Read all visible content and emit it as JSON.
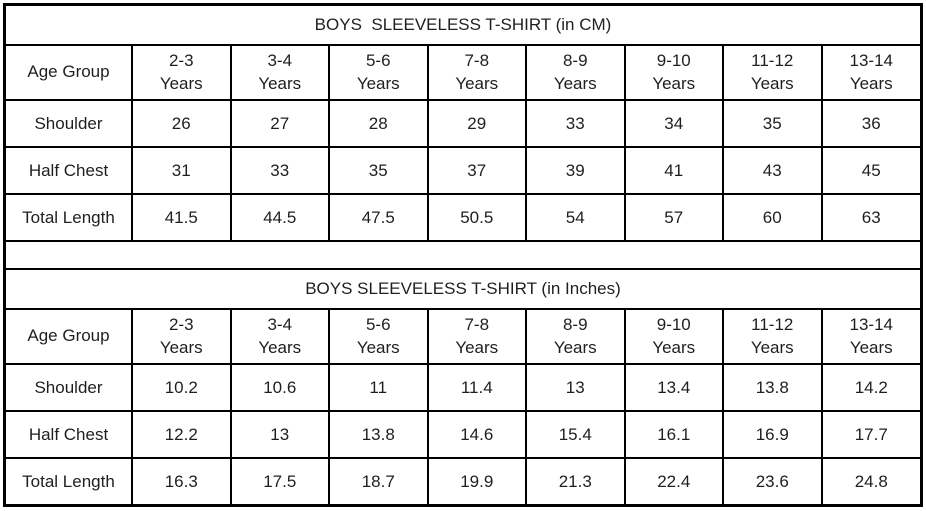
{
  "colors": {
    "border": "#000000",
    "text": "#1f1f1f",
    "background": "#ffffff"
  },
  "size_chart": {
    "years_label": "Years",
    "tables": [
      {
        "title": "BOYS  SLEEVELESS T-SHIRT (in CM)",
        "corner_label": "Age Group",
        "age_groups": [
          "2-3",
          "3-4",
          "5-6",
          "7-8",
          "8-9",
          "9-10",
          "11-12",
          "13-14"
        ],
        "rows": [
          {
            "label": "Shoulder",
            "values": [
              "26",
              "27",
              "28",
              "29",
              "33",
              "34",
              "35",
              "36"
            ]
          },
          {
            "label": "Half Chest",
            "values": [
              "31",
              "33",
              "35",
              "37",
              "39",
              "41",
              "43",
              "45"
            ]
          },
          {
            "label": "Total Length",
            "values": [
              "41.5",
              "44.5",
              "47.5",
              "50.5",
              "54",
              "57",
              "60",
              "63"
            ]
          }
        ]
      },
      {
        "title": "BOYS SLEEVELESS T-SHIRT (in Inches)",
        "corner_label": "Age Group",
        "age_groups": [
          "2-3",
          "3-4",
          "5-6",
          "7-8",
          "8-9",
          "9-10",
          "11-12",
          "13-14"
        ],
        "rows": [
          {
            "label": "Shoulder",
            "values": [
              "10.2",
              "10.6",
              "11",
              "11.4",
              "13",
              "13.4",
              "13.8",
              "14.2"
            ]
          },
          {
            "label": "Half Chest",
            "values": [
              "12.2",
              "13",
              "13.8",
              "14.6",
              "15.4",
              "16.1",
              "16.9",
              "17.7"
            ]
          },
          {
            "label": "Total Length",
            "values": [
              "16.3",
              "17.5",
              "18.7",
              "19.9",
              "21.3",
              "22.4",
              "23.6",
              "24.8"
            ]
          }
        ]
      }
    ]
  }
}
